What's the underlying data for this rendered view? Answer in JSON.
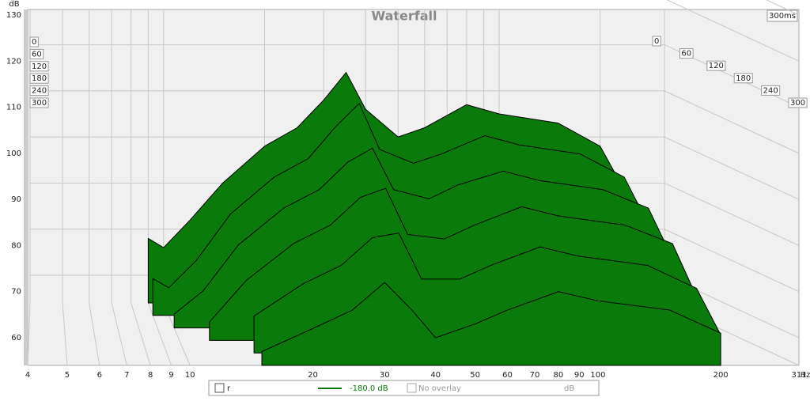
{
  "chart_data": {
    "type": "waterfall",
    "title": "Waterfall",
    "y_label": "dB",
    "x_label": "Hz",
    "time_range_label": "300ms",
    "x": [
      9,
      10,
      12,
      15,
      20,
      25,
      30,
      35,
      40,
      50,
      60,
      80,
      100,
      150,
      200,
      230
    ],
    "series": [
      {
        "name": "0",
        "values": [
          68,
          66,
          72,
          80,
          88,
          92,
          98,
          104,
          96,
          90,
          92,
          97,
          95,
          93,
          88,
          80
        ]
      },
      {
        "name": "60",
        "values": [
          62,
          60,
          66,
          76,
          84,
          88,
          95,
          100,
          90,
          87,
          89,
          93,
          91,
          89,
          84,
          75
        ]
      },
      {
        "name": "120",
        "values": [
          null,
          57,
          62,
          72,
          80,
          84,
          90,
          93,
          84,
          82,
          85,
          88,
          86,
          84,
          80,
          70
        ]
      },
      {
        "name": "180",
        "values": [
          null,
          null,
          58,
          67,
          75,
          79,
          85,
          87,
          77,
          76,
          79,
          83,
          81,
          79,
          75,
          64
        ]
      },
      {
        "name": "240",
        "values": [
          null,
          null,
          null,
          62,
          69,
          73,
          79,
          80,
          70,
          70,
          73,
          77,
          75,
          73,
          68,
          58
        ]
      },
      {
        "name": "300",
        "values": [
          null,
          null,
          null,
          57,
          62,
          66,
          72,
          66,
          60,
          63,
          66,
          70,
          68,
          66,
          61,
          null
        ]
      }
    ],
    "color": "#0a7a0a",
    "xlim": [
      4,
      311
    ],
    "log_x": true,
    "xticks": [
      4,
      5,
      6,
      7,
      8,
      9,
      10,
      20,
      30,
      40,
      50,
      60,
      70,
      80,
      90,
      100,
      200,
      311
    ],
    "ylim": [
      54,
      130
    ],
    "yticks": [
      60,
      70,
      80,
      90,
      100,
      110,
      120,
      130
    ],
    "grid": true,
    "legend": {
      "trace": "r",
      "level": "-180.0 dB",
      "overlay": "No overlay",
      "unit": "dB"
    }
  }
}
